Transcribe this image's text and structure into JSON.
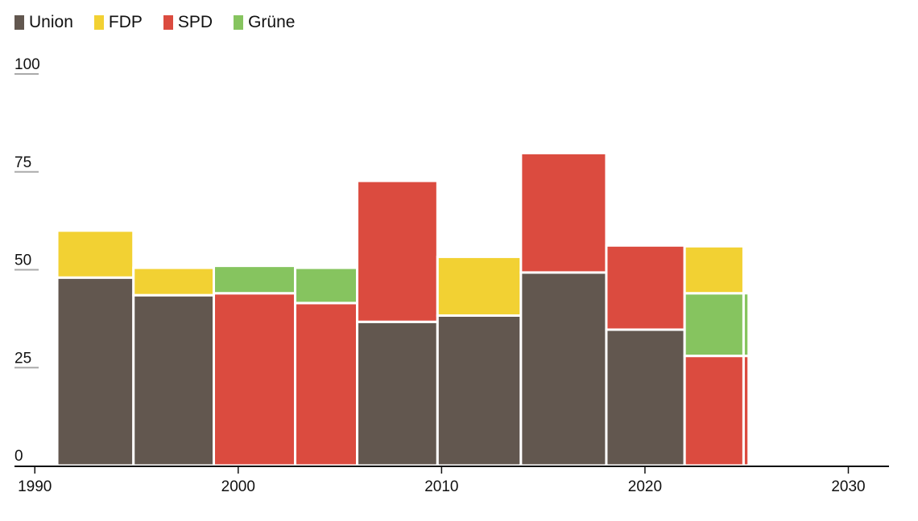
{
  "legend": {
    "items": [
      {
        "label": "Union",
        "color": "#62574f"
      },
      {
        "label": "FDP",
        "color": "#f2d133"
      },
      {
        "label": "SPD",
        "color": "#db4b3f"
      },
      {
        "label": "Grüne",
        "color": "#86c45f"
      }
    ]
  },
  "chart_data": {
    "type": "bar",
    "title": "",
    "xlabel": "",
    "ylabel": "",
    "xlim": [
      1989,
      2032
    ],
    "ylim": [
      0,
      100
    ],
    "x_ticks": [
      1990,
      2000,
      2010,
      2020,
      2030
    ],
    "y_ticks": [
      0,
      25,
      50,
      75,
      100
    ],
    "grid": false,
    "legend_position": "top-left",
    "periods": [
      {
        "start": 1991.1,
        "end": 1994.85,
        "segments": [
          {
            "party": "Union",
            "value": 48
          },
          {
            "party": "FDP",
            "value": 12
          }
        ]
      },
      {
        "start": 1994.85,
        "end": 1998.8,
        "segments": [
          {
            "party": "Union",
            "value": 43.5
          },
          {
            "party": "FDP",
            "value": 7
          }
        ]
      },
      {
        "start": 1998.8,
        "end": 2002.8,
        "segments": [
          {
            "party": "SPD",
            "value": 44
          },
          {
            "party": "Grüne",
            "value": 7
          }
        ]
      },
      {
        "start": 2002.8,
        "end": 2005.85,
        "segments": [
          {
            "party": "SPD",
            "value": 41.5
          },
          {
            "party": "Grüne",
            "value": 9
          }
        ]
      },
      {
        "start": 2005.85,
        "end": 2009.8,
        "segments": [
          {
            "party": "Union",
            "value": 36.7
          },
          {
            "party": "SPD",
            "value": 36
          }
        ]
      },
      {
        "start": 2009.8,
        "end": 2013.9,
        "segments": [
          {
            "party": "Union",
            "value": 38.3
          },
          {
            "party": "FDP",
            "value": 15
          }
        ]
      },
      {
        "start": 2013.9,
        "end": 2018.1,
        "segments": [
          {
            "party": "Union",
            "value": 49.3
          },
          {
            "party": "SPD",
            "value": 30.5
          }
        ]
      },
      {
        "start": 2018.1,
        "end": 2021.95,
        "segments": [
          {
            "party": "Union",
            "value": 34.7
          },
          {
            "party": "SPD",
            "value": 21.5
          }
        ]
      },
      {
        "start": 2021.95,
        "end": 2024.85,
        "segments": [
          {
            "party": "SPD",
            "value": 28
          },
          {
            "party": "Grüne",
            "value": 16
          },
          {
            "party": "FDP",
            "value": 12
          }
        ]
      },
      {
        "start": 2024.85,
        "end": 2025.1,
        "segments": [
          {
            "party": "SPD",
            "value": 28
          },
          {
            "party": "Grüne",
            "value": 16
          }
        ]
      }
    ]
  }
}
